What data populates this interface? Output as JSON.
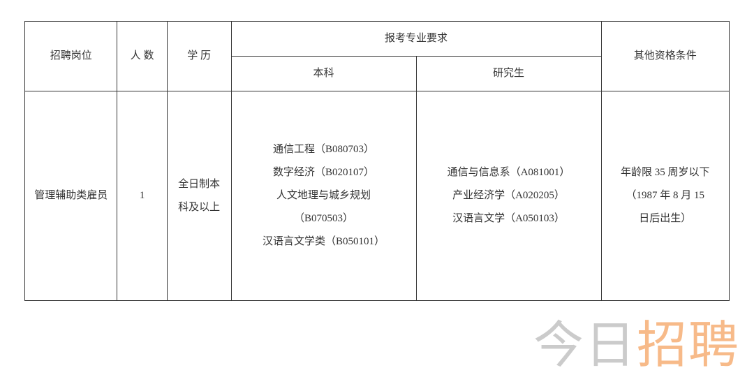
{
  "table": {
    "headers": {
      "position": "招聘岗位",
      "count": "人 数",
      "education": "学 历",
      "major_requirement": "报考专业要求",
      "undergrad": "本科",
      "grad": "研究生",
      "other": "其他资格条件"
    },
    "row": {
      "position": "管理辅助类雇员",
      "count": "1",
      "education": "全日制本科及以上",
      "undergrad_lines": [
        "通信工程（B080703）",
        "数字经济（B020107）",
        "人文地理与城乡规划",
        "（B070503）",
        "汉语言文学类（B050101）"
      ],
      "grad_lines": [
        "通信与信息系（A081001）",
        "产业经济学（A020205）",
        "汉语言文学（A050103）"
      ],
      "other_lines": [
        "年龄限 35 周岁以下",
        "（1987 年 8 月 15",
        "日后出生）"
      ]
    }
  },
  "watermark": {
    "part1": "今日",
    "part2": "招聘"
  },
  "style": {
    "border_color": "#333333",
    "text_color": "#333333",
    "background_color": "#ffffff",
    "font_size_cell": 15,
    "watermark_font_size": 72,
    "watermark_gray": "rgba(140,140,140,0.45)",
    "watermark_orange": "rgba(240,130,40,0.55)"
  }
}
